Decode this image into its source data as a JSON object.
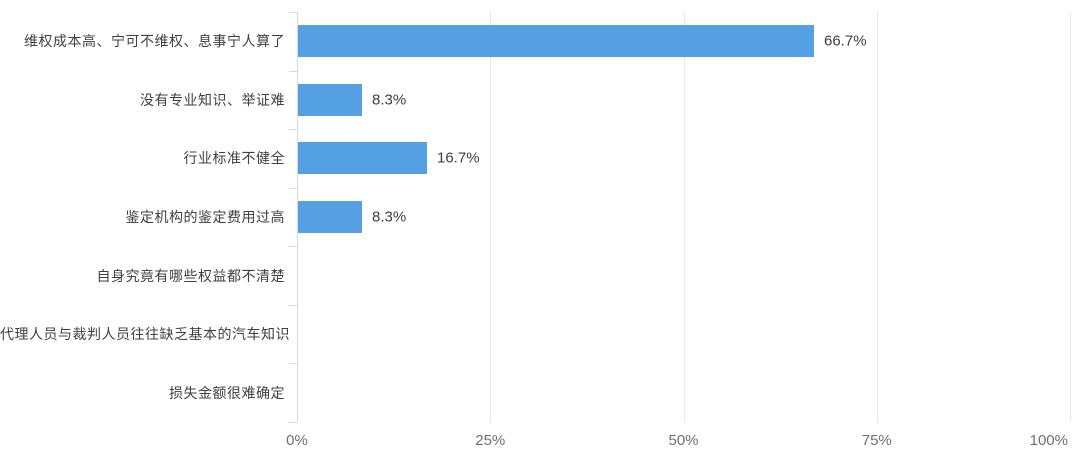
{
  "chart_data": {
    "type": "bar",
    "orientation": "horizontal",
    "title": "",
    "categories": [
      "维权成本高、宁可不维权、息事宁人算了",
      "没有专业知识、举证难",
      "行业标准不健全",
      "鉴定机构的鉴定费用过高",
      "自身究竟有哪些权益都不清楚",
      "代理人员与裁判人员往往缺乏基本的汽车知识",
      "损失金额很难确定"
    ],
    "values": [
      66.7,
      8.3,
      16.7,
      8.3,
      0,
      0,
      0
    ],
    "value_labels": [
      "66.7%",
      "8.3%",
      "16.7%",
      "8.3%",
      "",
      "",
      ""
    ],
    "x_ticks": [
      "0%",
      "25%",
      "50%",
      "75%",
      "100%"
    ],
    "x_tick_values": [
      0,
      25,
      50,
      75,
      100
    ],
    "xlim": [
      0,
      100
    ],
    "grid": true,
    "legend": false,
    "colors": {
      "bar": "#55A0E2",
      "grid_line": "#e7e7e7",
      "axis_line": "#d9d9d9",
      "category_label": "#404040",
      "value_label": "#3d3d3d",
      "tick_label": "#6f6f6f",
      "background": "#ffffff"
    }
  }
}
